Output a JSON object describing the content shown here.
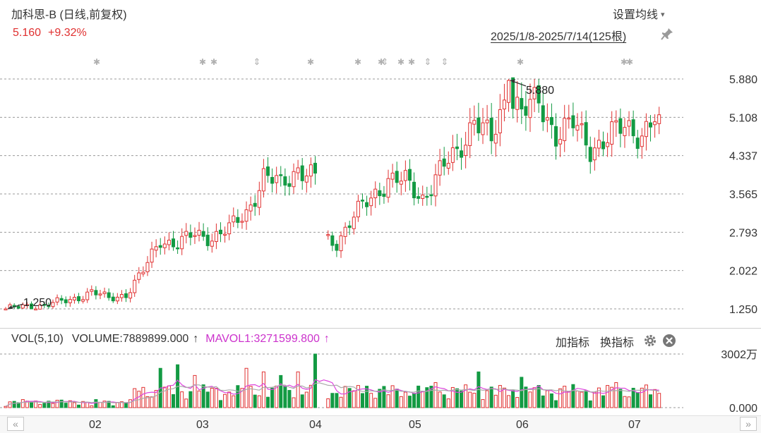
{
  "header": {
    "stock_name": "加科思-B (日线,前复权)",
    "last_price": "5.160",
    "change_pct": "+9.32%",
    "settings_label": "设置均线",
    "date_range": "2025/1/8-2025/7/14(125根)"
  },
  "colors": {
    "up": "#e03131",
    "down": "#139a43",
    "mavol1": "#dd44dd",
    "mavol2": "#aaaaaa",
    "grid": "#999999"
  },
  "icons": {
    "settings_chevron": "chevron-down-icon",
    "pin": "pin-icon",
    "gear": "gear-icon",
    "close": "close-icon",
    "scroll_left": "double-chevron-left-icon",
    "scroll_right": "double-chevron-right-icon"
  },
  "volume_header": {
    "indicator": "VOL(5,10)",
    "volume": "VOLUME:7889899.000",
    "volume_arrow": "↑",
    "mavol1": "MAVOL1:3271599.800",
    "mavol1_arrow": "↑",
    "add_indicator": "加指标",
    "switch_indicator": "换指标"
  },
  "x_axis": {
    "months": [
      "02",
      "03",
      "04",
      "05",
      "06",
      "07"
    ]
  },
  "chart_data": {
    "type": "candlestick",
    "price_axis": {
      "ticks": [
        "5.880",
        "5.108",
        "4.337",
        "3.565",
        "2.793",
        "2.022",
        "1.250"
      ],
      "range": [
        1.25,
        5.88
      ]
    },
    "annotations": {
      "high": "5.880",
      "low": "1.250"
    },
    "volume_axis": {
      "ticks": [
        "3002万",
        "0.000"
      ],
      "range": [
        0,
        30020000
      ]
    },
    "candles_count": 125,
    "anchors": [
      [
        0,
        1.25
      ],
      [
        8,
        1.32
      ],
      [
        15,
        1.42
      ],
      [
        20,
        1.6
      ],
      [
        24,
        1.45
      ],
      [
        28,
        1.55
      ],
      [
        32,
        2.0
      ],
      [
        36,
        2.65
      ],
      [
        40,
        2.55
      ],
      [
        44,
        2.75
      ],
      [
        48,
        2.7
      ],
      [
        52,
        2.85
      ],
      [
        56,
        3.2
      ],
      [
        60,
        3.9
      ],
      [
        64,
        3.75
      ],
      [
        68,
        4.1
      ],
      [
        72,
        3.85
      ],
      [
        73,
        2.7
      ],
      [
        77,
        2.6
      ],
      [
        81,
        3.1
      ],
      [
        85,
        3.5
      ],
      [
        89,
        3.85
      ],
      [
        93,
        3.8
      ],
      [
        97,
        3.5
      ],
      [
        101,
        4.0
      ],
      [
        105,
        4.4
      ],
      [
        109,
        5.1
      ],
      [
        113,
        4.6
      ],
      [
        117,
        5.7
      ],
      [
        120,
        5.2
      ],
      [
        124,
        5.4
      ],
      [
        128,
        4.8
      ],
      [
        132,
        4.95
      ],
      [
        136,
        4.5
      ],
      [
        140,
        4.7
      ],
      [
        144,
        4.9
      ],
      [
        148,
        4.8
      ],
      [
        152,
        5.16
      ]
    ],
    "volume_spikes": [
      [
        20,
        1
      ],
      [
        36,
        22
      ],
      [
        40,
        24
      ],
      [
        44,
        18
      ],
      [
        56,
        22
      ],
      [
        60,
        20
      ],
      [
        64,
        18
      ],
      [
        68,
        20
      ],
      [
        72,
        30
      ],
      [
        73,
        15
      ],
      [
        84,
        12
      ],
      [
        100,
        14
      ],
      [
        110,
        20
      ],
      [
        120,
        17
      ],
      [
        130,
        12
      ],
      [
        142,
        14
      ],
      [
        152,
        8
      ]
    ]
  }
}
